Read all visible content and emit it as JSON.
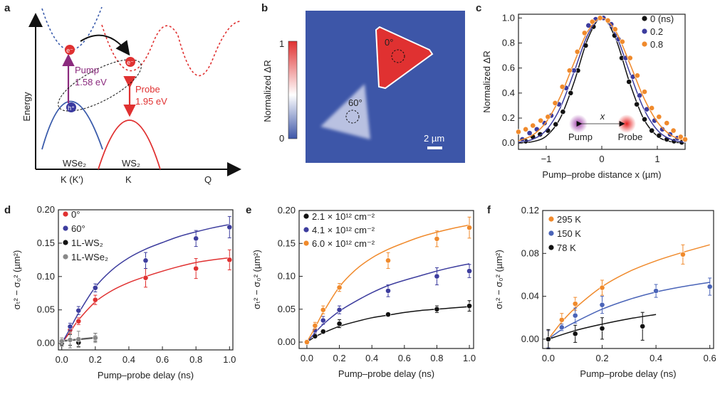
{
  "panels": {
    "a": {
      "letter": "a",
      "yaxis": "Energy",
      "pump": "Pump",
      "pump_energy": "1.58 eV",
      "probe": "Probe",
      "probe_energy": "1.95 eV",
      "electron": "e⁻",
      "hole": "h⁺",
      "wse2": "WSe₂",
      "ws2": "WS₂",
      "k1": "K (K′)",
      "k2": "K",
      "q": "Q",
      "colors": {
        "wse2": "#3a5bab",
        "ws2": "#e03131",
        "pump": "#8b2a7e"
      }
    },
    "b": {
      "letter": "b",
      "colorbar_label": "Normalized ΔR",
      "cb_max": "1",
      "cb_min": "0",
      "label_0": "0°",
      "label_60": "60°",
      "scalebar": "2 µm",
      "colors": {
        "background": "#3d56a8",
        "high": "#e03131",
        "mid": "#ffffff"
      }
    }
  },
  "chart_data": [
    {
      "id": "c",
      "letter": "c",
      "type": "scatter",
      "xlabel": "Pump–probe distance x (µm)",
      "ylabel": "Normalized ΔR",
      "xlim": [
        -1.5,
        1.5
      ],
      "ylim": [
        -0.05,
        1.03
      ],
      "xticks": [
        -1,
        0,
        1
      ],
      "xticklabels": [
        "−1",
        "0",
        "1"
      ],
      "yticks": [
        0,
        0.2,
        0.4,
        0.6,
        0.8,
        1.0
      ],
      "yticklabels": [
        "0.0",
        "0.2",
        "0.4",
        "0.6",
        "0.8",
        "1.0"
      ],
      "legend_position": "top-right",
      "inset": {
        "x_label": "x",
        "pump": "Pump",
        "probe": "Probe"
      },
      "series": [
        {
          "name": "0 (ns)",
          "color": "#111111",
          "x": [
            -1.37,
            -1.24,
            -1.11,
            -0.97,
            -0.83,
            -0.7,
            -0.56,
            -0.43,
            -0.29,
            -0.15,
            0.23,
            0.36,
            0.49,
            0.63,
            0.77,
            0.9,
            1.03,
            1.17,
            1.3,
            1.44
          ],
          "y": [
            0.015,
            0.05,
            0.07,
            0.1,
            0.15,
            0.25,
            0.4,
            0.58,
            0.78,
            0.93,
            0.86,
            0.68,
            0.49,
            0.31,
            0.19,
            0.1,
            0.06,
            0.03,
            0.015,
            0.006
          ],
          "fit_x": [
            -1.5,
            -1.25,
            -1,
            -0.75,
            -0.5,
            -0.25,
            0,
            0.25,
            0.5,
            0.75,
            1,
            1.25,
            1.5
          ],
          "fit_y": [
            0.0015,
            0.011,
            0.056,
            0.197,
            0.485,
            0.835,
            1,
            0.835,
            0.485,
            0.197,
            0.056,
            0.011,
            0.0015
          ]
        },
        {
          "name": "0.2",
          "color": "#3d3d9e",
          "x": [
            -1.43,
            -1.3,
            -1.17,
            -1.03,
            -0.91,
            -0.77,
            -0.64,
            -0.5,
            -0.24,
            -0.11,
            0.03,
            0.17,
            0.3,
            0.43,
            0.56,
            0.68,
            0.81,
            0.95,
            1.09,
            1.23,
            1.36,
            1.5
          ],
          "y": [
            0.03,
            0.08,
            0.11,
            0.16,
            0.22,
            0.31,
            0.44,
            0.58,
            0.94,
            0.99,
            1.0,
            0.95,
            0.83,
            0.68,
            0.53,
            0.38,
            0.27,
            0.18,
            0.11,
            0.07,
            0.04,
            0.025
          ],
          "fit_x": [
            -1.5,
            -1.25,
            -1,
            -0.75,
            -0.5,
            -0.25,
            0,
            0.25,
            0.5,
            0.75,
            1,
            1.25,
            1.5
          ],
          "fit_y": [
            0.006,
            0.029,
            0.104,
            0.28,
            0.568,
            0.868,
            1,
            0.868,
            0.568,
            0.28,
            0.104,
            0.029,
            0.006
          ]
        },
        {
          "name": "0.8",
          "color": "#f08a2c",
          "x": [
            -1.5,
            -1.37,
            -1.24,
            -1.1,
            -0.97,
            -0.84,
            -0.71,
            -0.58,
            -0.44,
            -0.31,
            -0.17,
            -0.03,
            0.11,
            0.24,
            0.37,
            0.51,
            0.64,
            0.77,
            0.9,
            1.03,
            1.17,
            1.29,
            1.42,
            1.5
          ],
          "y": [
            0.09,
            0.11,
            0.14,
            0.18,
            0.21,
            0.32,
            0.45,
            0.58,
            0.73,
            0.88,
            0.97,
            1.0,
            0.98,
            0.91,
            0.81,
            0.68,
            0.54,
            0.41,
            0.28,
            0.21,
            0.16,
            0.1,
            0.05,
            0.03
          ],
          "fit_x": [
            -1.5,
            -1.25,
            -1,
            -0.75,
            -0.5,
            -0.25,
            0,
            0.25,
            0.5,
            0.75,
            1,
            1.25,
            1.5
          ],
          "fit_y": [
            0.018,
            0.062,
            0.169,
            0.368,
            0.641,
            0.895,
            1,
            0.895,
            0.641,
            0.368,
            0.169,
            0.062,
            0.018
          ]
        }
      ]
    },
    {
      "id": "d",
      "letter": "d",
      "type": "scatter",
      "xlabel": "Pump–probe delay (ns)",
      "ylabel": "σₜ² − σ₀² (µm²)",
      "xlim": [
        -0.02,
        1.02
      ],
      "ylim": [
        -0.01,
        0.2
      ],
      "xticks": [
        0,
        0.2,
        0.4,
        0.6,
        0.8,
        1.0
      ],
      "xticklabels": [
        "0.0",
        "0.2",
        "0.4",
        "0.6",
        "0.8",
        "1.0"
      ],
      "yticks": [
        0,
        0.05,
        0.1,
        0.15,
        0.2
      ],
      "yticklabels": [
        "0.00",
        "0.05",
        "0.10",
        "0.15",
        "0.20"
      ],
      "legend_position": "top-left",
      "series": [
        {
          "name": "0°",
          "color": "#e03131",
          "x": [
            0,
            0.05,
            0.1,
            0.2,
            0.5,
            0.8,
            1.0
          ],
          "y": [
            0.002,
            0.02,
            0.033,
            0.065,
            0.098,
            0.112,
            0.125
          ],
          "err": [
            0.003,
            0.005,
            0.005,
            0.007,
            0.014,
            0.015,
            0.015
          ],
          "fit_x": [
            0,
            0.05,
            0.1,
            0.2,
            0.3,
            0.4,
            0.5,
            0.6,
            0.7,
            0.8,
            0.9,
            1.0
          ],
          "fit_y": [
            0,
            0.017,
            0.035,
            0.062,
            0.079,
            0.091,
            0.1,
            0.108,
            0.115,
            0.121,
            0.125,
            0.128
          ]
        },
        {
          "name": "60°",
          "color": "#3d3d9e",
          "x": [
            0,
            0.05,
            0.1,
            0.2,
            0.5,
            0.8,
            1.0
          ],
          "y": [
            0.002,
            0.025,
            0.049,
            0.083,
            0.124,
            0.157,
            0.174
          ],
          "err": [
            0.003,
            0.005,
            0.006,
            0.006,
            0.012,
            0.012,
            0.016
          ],
          "fit_x": [
            0,
            0.05,
            0.1,
            0.2,
            0.3,
            0.4,
            0.5,
            0.6,
            0.7,
            0.8,
            0.9,
            1.0
          ],
          "fit_y": [
            0,
            0.022,
            0.045,
            0.084,
            0.11,
            0.128,
            0.141,
            0.151,
            0.16,
            0.167,
            0.173,
            0.178
          ]
        },
        {
          "name": "1L-WS₂",
          "color": "#111111",
          "x": [
            0,
            0.05,
            0.1,
            0.2
          ],
          "y": [
            0.0,
            0.005,
            0.001,
            0.009
          ],
          "err": [
            0.004,
            0.008,
            0.006,
            0.006
          ],
          "fit_x": [
            0,
            0.2
          ],
          "fit_y": [
            0.003,
            0.008
          ]
        },
        {
          "name": "1L-WSe₂",
          "color": "#888888",
          "x": [
            0,
            0.05,
            0.1,
            0.2
          ],
          "y": [
            0.003,
            0.005,
            0.006,
            0.008
          ],
          "err": [
            0.005,
            0.012,
            0.012,
            0.007
          ],
          "fit_x": [
            0,
            0.2
          ],
          "fit_y": [
            0.004,
            0.009
          ]
        }
      ]
    },
    {
      "id": "e",
      "letter": "e",
      "type": "scatter",
      "xlabel": "Pump–probe delay (ns)",
      "ylabel": "σₜ² − σ₀² (µm²)",
      "xlim": [
        -0.048,
        1.026
      ],
      "ylim": [
        -0.0097,
        0.2
      ],
      "xticks": [
        0,
        0.2,
        0.4,
        0.6,
        0.8,
        1.0
      ],
      "xticklabels": [
        "0.0",
        "0.2",
        "0.4",
        "0.6",
        "0.8",
        "1.0"
      ],
      "yticks": [
        0,
        0.05,
        0.1,
        0.15,
        0.2
      ],
      "yticklabels": [
        "0.00",
        "0.05",
        "0.10",
        "0.15",
        "0.20"
      ],
      "legend_position": "top-left",
      "series": [
        {
          "name": "2.1 × 10¹² cm⁻²",
          "color": "#111111",
          "x": [
            0,
            0.05,
            0.1,
            0.2,
            0.5,
            0.8,
            1.0
          ],
          "y": [
            0,
            0.009,
            0.016,
            0.028,
            0.042,
            0.05,
            0.055
          ],
          "err": [
            0.003,
            0.003,
            0.003,
            0.006,
            0.003,
            0.005,
            0.008
          ],
          "fit_x": [
            0,
            0.05,
            0.1,
            0.2,
            0.3,
            0.4,
            0.5,
            0.6,
            0.7,
            0.8,
            0.9,
            1.0
          ],
          "fit_y": [
            0,
            0.008,
            0.014,
            0.024,
            0.031,
            0.037,
            0.041,
            0.045,
            0.048,
            0.05,
            0.052,
            0.054
          ]
        },
        {
          "name": "4.1 × 10¹² cm⁻²",
          "color": "#3d3d9e",
          "x": [
            0,
            0.05,
            0.1,
            0.2,
            0.5,
            0.8,
            1.0
          ],
          "y": [
            0,
            0.018,
            0.033,
            0.049,
            0.078,
            0.1,
            0.108
          ],
          "err": [
            0.003,
            0.004,
            0.006,
            0.006,
            0.009,
            0.013,
            0.01
          ],
          "fit_x": [
            0,
            0.05,
            0.1,
            0.2,
            0.3,
            0.4,
            0.5,
            0.6,
            0.7,
            0.8,
            0.9,
            1.0
          ],
          "fit_y": [
            0,
            0.014,
            0.027,
            0.047,
            0.062,
            0.075,
            0.086,
            0.094,
            0.101,
            0.108,
            0.114,
            0.119
          ]
        },
        {
          "name": "6.0 × 10¹² cm⁻²",
          "color": "#f08a2c",
          "x": [
            0,
            0.05,
            0.1,
            0.2,
            0.5,
            0.8,
            1.0
          ],
          "y": [
            0,
            0.025,
            0.049,
            0.083,
            0.124,
            0.157,
            0.174
          ],
          "err": [
            0.003,
            0.005,
            0.006,
            0.006,
            0.012,
            0.012,
            0.016
          ],
          "fit_x": [
            0,
            0.05,
            0.1,
            0.2,
            0.3,
            0.4,
            0.5,
            0.6,
            0.7,
            0.8,
            0.9,
            1.0
          ],
          "fit_y": [
            0,
            0.022,
            0.045,
            0.084,
            0.11,
            0.128,
            0.141,
            0.151,
            0.16,
            0.167,
            0.173,
            0.178
          ]
        }
      ]
    },
    {
      "id": "f",
      "letter": "f",
      "type": "scatter",
      "xlabel": "Pump–probe delay (ns)",
      "ylabel": "σₜ² − σ₀² (µm²)",
      "xlim": [
        -0.021,
        0.614
      ],
      "ylim": [
        -0.0087,
        0.12
      ],
      "xticks": [
        0,
        0.2,
        0.4,
        0.6
      ],
      "xticklabels": [
        "0.0",
        "0.2",
        "0.4",
        "0.6"
      ],
      "yticks": [
        0,
        0.04,
        0.08,
        0.12
      ],
      "yticklabels": [
        "0.00",
        "0.04",
        "0.08",
        "0.12"
      ],
      "legend_position": "top-left",
      "series": [
        {
          "name": "295 K",
          "color": "#f08a2c",
          "x": [
            0,
            0.05,
            0.1,
            0.2,
            0.5
          ],
          "y": [
            0,
            0.018,
            0.033,
            0.048,
            0.079
          ],
          "err": [
            0.008,
            0.006,
            0.006,
            0.007,
            0.009
          ],
          "fit_x": [
            0,
            0.05,
            0.1,
            0.2,
            0.3,
            0.4,
            0.5,
            0.6
          ],
          "fit_y": [
            0,
            0.016,
            0.029,
            0.049,
            0.063,
            0.073,
            0.081,
            0.088
          ]
        },
        {
          "name": "150 K",
          "color": "#4a64b8",
          "x": [
            0,
            0.05,
            0.1,
            0.2,
            0.4,
            0.6
          ],
          "y": [
            0,
            0.011,
            0.022,
            0.032,
            0.045,
            0.049
          ],
          "err": [
            0.008,
            0.003,
            0.007,
            0.008,
            0.006,
            0.008
          ],
          "fit_x": [
            0,
            0.05,
            0.1,
            0.2,
            0.3,
            0.4,
            0.5,
            0.6
          ],
          "fit_y": [
            0,
            0.009,
            0.016,
            0.028,
            0.037,
            0.044,
            0.049,
            0.053
          ]
        },
        {
          "name": "78 K",
          "color": "#111111",
          "x": [
            0,
            0.1,
            0.2,
            0.35
          ],
          "y": [
            0,
            0.005,
            0.01,
            0.012
          ],
          "err": [
            0.009,
            0.008,
            0.01,
            0.013
          ],
          "fit_x": [
            0,
            0.1,
            0.2,
            0.3,
            0.4
          ],
          "fit_y": [
            0,
            0.008,
            0.014,
            0.019,
            0.023
          ]
        }
      ]
    }
  ]
}
